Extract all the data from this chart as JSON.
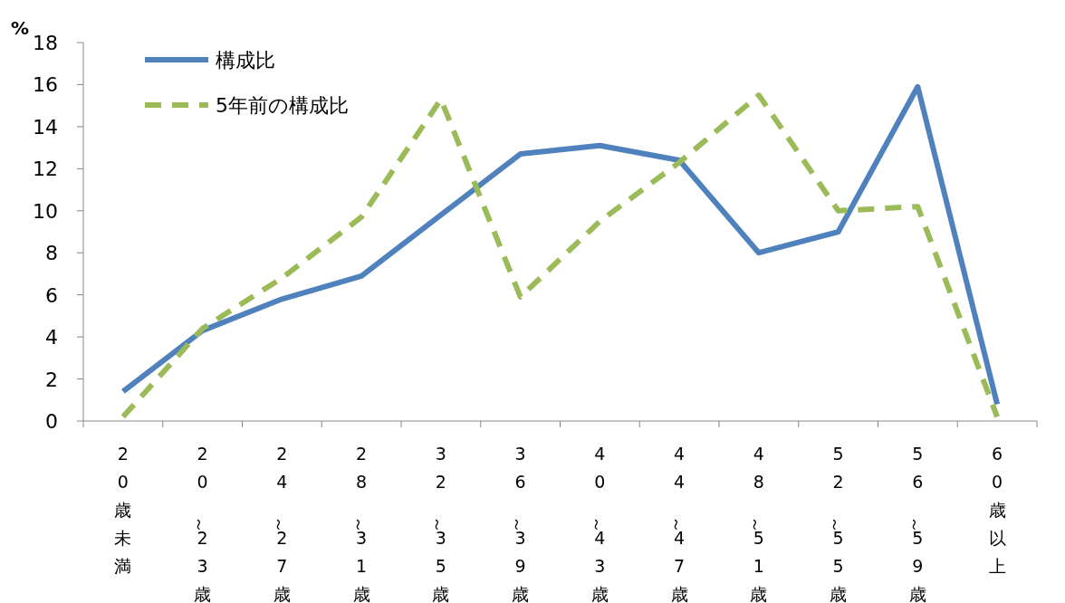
{
  "chart_data": {
    "type": "line",
    "ylabel": "%",
    "categories": [
      "20歳未満",
      "20～23歳",
      "24～27歳",
      "28～31歳",
      "32～35歳",
      "36～39歳",
      "40～43歳",
      "44～47歳",
      "48～51歳",
      "52～55歳",
      "56～59歳",
      "60歳以上"
    ],
    "series": [
      {
        "name": "構成比",
        "color": "#4f81bd",
        "line_style": "solid",
        "values": [
          1.4,
          4.3,
          5.8,
          6.9,
          9.8,
          12.7,
          13.1,
          12.4,
          8.0,
          9.0,
          15.9,
          0.8
        ]
      },
      {
        "name": "5年前の構成比",
        "color": "#9bbb59",
        "line_style": "dashed",
        "values": [
          0.2,
          4.4,
          6.8,
          9.7,
          15.3,
          5.9,
          9.5,
          12.3,
          15.5,
          10.0,
          10.2,
          0.2
        ]
      }
    ],
    "ylim": [
      0,
      18
    ],
    "yticks": [
      0,
      2,
      4,
      6,
      8,
      10,
      12,
      14,
      16,
      18
    ],
    "grid": false,
    "legend": "top left",
    "marker": "none"
  }
}
